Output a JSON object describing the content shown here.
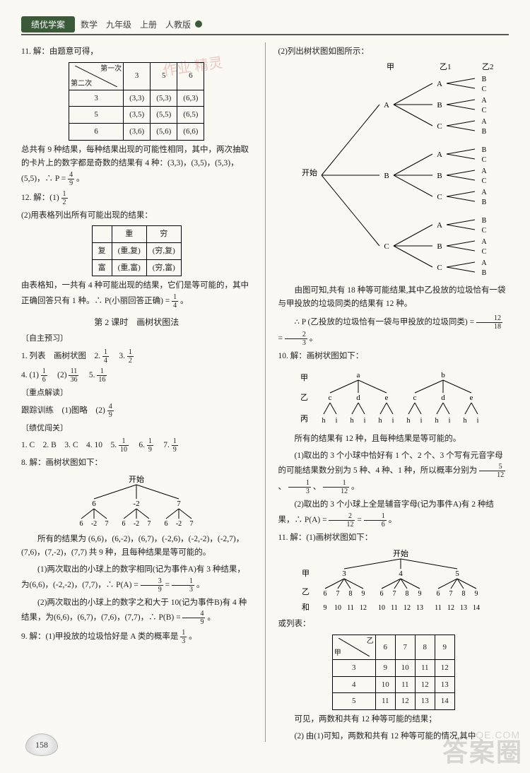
{
  "header": {
    "tab": "绩优学案",
    "meta": "数学　九年级　上册　人教版"
  },
  "left": {
    "q11_intro": "11. 解：由题意可得，",
    "table11": {
      "cornerTop": "第一次",
      "cornerBottom": "第二次",
      "cols": [
        "3",
        "5",
        "6"
      ],
      "rows": [
        {
          "h": "3",
          "c": [
            "(3,3)",
            "(5,3)",
            "(6,3)"
          ]
        },
        {
          "h": "5",
          "c": [
            "(3,5)",
            "(5,5)",
            "(6,5)"
          ]
        },
        {
          "h": "6",
          "c": [
            "(3,6)",
            "(5,6)",
            "(6,6)"
          ]
        }
      ]
    },
    "p11a": "总共有 9 种结果，每种结果出现的可能性相同，其中，两次抽取的卡片上的数字都是奇数的结果有 4 种：(3,3)，(3,5)，(5,3)，(5,5)，∴ P =",
    "frac11": {
      "n": "4",
      "d": "9"
    },
    "p11b": "。",
    "q12a": "12. 解：(1)",
    "frac12": {
      "n": "1",
      "d": "2"
    },
    "q12b": "(2)用表格列出所有可能出现的结果：",
    "table12": {
      "cols": [
        "重",
        "穷"
      ],
      "rows": [
        {
          "h": "复",
          "c": [
            "(重,复)",
            "(穷,复)"
          ]
        },
        {
          "h": "富",
          "c": [
            "(重,富)",
            "(穷,富)"
          ]
        }
      ]
    },
    "p12a": "由表格知，一共有 4 种可能出现的结果，它们是等可能的，其中正确回答只有 1 种。∴ P(小丽回答正确) =",
    "frac12b": {
      "n": "1",
      "d": "4"
    },
    "p12b": "。",
    "sec2": "第 2 课时　画树状图法",
    "zzyx": "〔自主预习〕",
    "l1": "1. 列表　画树状图　2.",
    "l1f1": {
      "n": "1",
      "d": "4"
    },
    "l1m": "　3.",
    "l1f2": {
      "n": "1",
      "d": "2"
    },
    "l4": "4. (1)",
    "l4f1": {
      "n": "1",
      "d": "6"
    },
    "l4m": "　(2)",
    "l4f2": {
      "n": "11",
      "d": "36"
    },
    "l4n": "　5.",
    "l4f3": {
      "n": "1",
      "d": "16"
    },
    "zdjd": "〔重点解读〕",
    "gz": "跟踪训练　(1)图略　(2)",
    "gzf": {
      "n": "4",
      "d": "9"
    },
    "jybg": "〔绩优闯关〕",
    "l1c": "1. C　2. B　3. C　4. 10　5.",
    "l1cf1": {
      "n": "1",
      "d": "10"
    },
    "l1cm": "　6.",
    "l1cf2": {
      "n": "1",
      "d": "9"
    },
    "l1cn": "　7.",
    "l1cf3": {
      "n": "1",
      "d": "9"
    },
    "q8": "8. 解：画树状图如下：",
    "tree8": {
      "root": "开始",
      "lvl1": [
        "6",
        "-2",
        "7"
      ],
      "lvl2": [
        "6",
        "-2",
        "7"
      ]
    },
    "p8a": "所有的结果为 (6,6)，(6,-2)，(6,7)，(-2,6)，(-2,-2)，(-2,7)，(7,6)，(7,-2)，(7,7) 共 9 种，且每种结果是等可能的。",
    "p8b": "(1)两次取出的小球上的数字相同(记为事件A)有 3 种结果，为(6,6)，(-2,-2)，(7,7)，∴ P(A) =",
    "f8b1": {
      "n": "3",
      "d": "9"
    },
    "p8bm": " = ",
    "f8b2": {
      "n": "1",
      "d": "3"
    },
    "p8be": "。",
    "p8c": "(2)两次取出的小球上的数字之和大于 10(记为事件B)有 4 种结果，为(6,6)，(6,7)，(7,6)，(7,7)，∴ P(B) =",
    "f8c": {
      "n": "4",
      "d": "9"
    },
    "p8ce": "。",
    "q9": "9. 解：(1)甲投放的垃圾恰好是 A 类的概率是",
    "f9": {
      "n": "1",
      "d": "3"
    },
    "q9e": "。"
  },
  "right": {
    "p2a": "(2)列出树状图如图所示：",
    "treeHdr": {
      "jia": "甲",
      "yi1": "乙1",
      "yi2": "乙2"
    },
    "treeBig": {
      "root": "开始",
      "lvl1": [
        "A",
        "B",
        "C"
      ],
      "lvl2": [
        "A",
        "B",
        "C"
      ],
      "lvl3": [
        "A",
        "B",
        "C"
      ],
      "leaves": [
        "B",
        "C",
        "A",
        "C",
        "A",
        "B",
        "B",
        "C",
        "A",
        "C",
        "A",
        "B",
        "B",
        "C",
        "A",
        "C",
        "A",
        "B"
      ]
    },
    "p2b": "由图可知,共有 18 种等可能结果,其中乙投放的垃圾恰有一袋与甲投放的垃圾同类的结果有 12 种。",
    "p2c": "∴ P (乙投放的垃圾恰有一袋与甲投放的垃圾同类) =",
    "f2c1": {
      "n": "12",
      "d": "18"
    },
    "p2cm": " = ",
    "f2c2": {
      "n": "2",
      "d": "3"
    },
    "p2ce": "。",
    "q10": "10. 解：画树状图如下：",
    "tree10": {
      "labels": {
        "jia": "甲",
        "yi": "乙",
        "bing": "丙"
      },
      "lvl1": [
        "a",
        "b"
      ],
      "lvl2": [
        "c",
        "d",
        "e"
      ],
      "lvl3": [
        "h",
        "i"
      ]
    },
    "p10a": "所有的结果有 12 种，且每种结果是等可能的。",
    "p10b": "(1)取出的 3 个小球中恰好有 1 个、2 个、3 个写有元音字母的可能结果数分别为 5 种、4 种、1 种，所以概率分别为",
    "f10b1": {
      "n": "5",
      "d": "12"
    },
    "c1": "、",
    "f10b2": {
      "n": "1",
      "d": "3"
    },
    "c2": "、",
    "f10b3": {
      "n": "1",
      "d": "12"
    },
    "p10be": "。",
    "p10c": "(2)取出的 3 个小球上全是辅音字母(记为事件A)有 2 种结果，∴ P(A) =",
    "f10c1": {
      "n": "2",
      "d": "12"
    },
    "p10cm": " = ",
    "f10c2": {
      "n": "1",
      "d": "6"
    },
    "p10ce": "。",
    "q11": "11. 解：(1)画树状图如下：",
    "tree11": {
      "root": "开始",
      "labels": {
        "jia": "甲",
        "yiwo": "乙\\n和"
      },
      "lvl1": [
        "3",
        "4",
        "5"
      ],
      "lvl2": [
        "6",
        "7",
        "8",
        "9"
      ],
      "sums": [
        [
          "9",
          "10",
          "11",
          "12"
        ],
        [
          "10",
          "11",
          "12",
          "13"
        ],
        [
          "11",
          "12",
          "13",
          "14"
        ]
      ]
    },
    "p11alt": "或列表：",
    "table11r": {
      "cornerTop": "乙",
      "cornerBottom": "甲",
      "cols": [
        "6",
        "7",
        "8",
        "9"
      ],
      "rows": [
        {
          "h": "3",
          "c": [
            "9",
            "10",
            "11",
            "12"
          ]
        },
        {
          "h": "4",
          "c": [
            "10",
            "11",
            "12",
            "13"
          ]
        },
        {
          "h": "5",
          "c": [
            "11",
            "12",
            "13",
            "14"
          ]
        }
      ]
    },
    "p11c": "可见，两数和共有 12 种等可能的结果；",
    "p11d": "(2) 由(1)可知，两数和共有 12 种等可能的情况,其中"
  },
  "pagenum": "158",
  "wm1": "答案圈",
  "wm2": "MXQE.COM",
  "stamp": "作业\n精灵"
}
